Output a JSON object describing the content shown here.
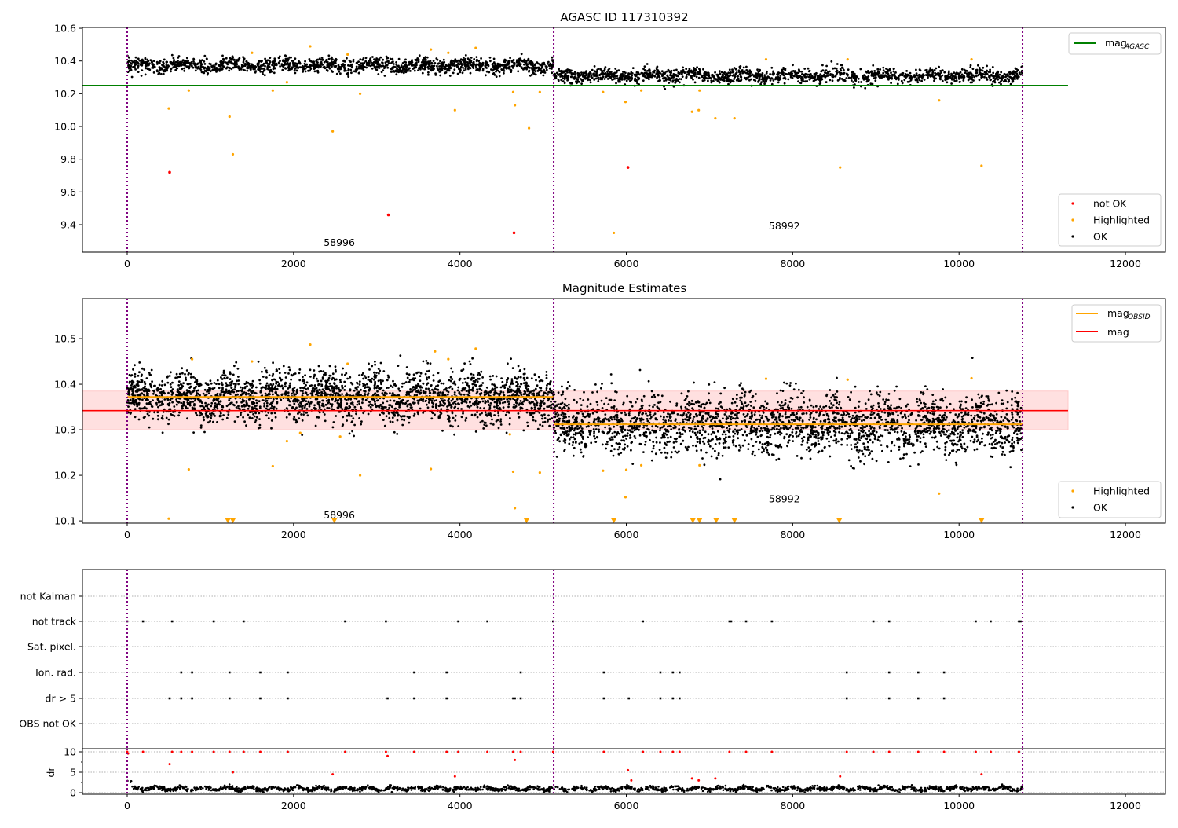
{
  "chart_data": [
    {
      "type": "scatter",
      "title": "AGASC ID 117310392",
      "xlim": [
        -538,
        12481
      ],
      "ylim": [
        9.232,
        10.605
      ],
      "xticks": [
        0,
        2000,
        4000,
        6000,
        8000,
        10000,
        12000
      ],
      "yticks": [
        9.4,
        9.6,
        9.8,
        10.0,
        10.2,
        10.4,
        10.6
      ],
      "obs_boundaries": [
        0,
        5127,
        10763
      ],
      "segments": [
        {
          "x_start": 0,
          "x_end": 5127,
          "mean": 10.372,
          "sigma": 0.022
        },
        {
          "x_start": 5127,
          "x_end": 10763,
          "mean": 10.31,
          "sigma": 0.022
        }
      ],
      "lines": [
        {
          "name": "mag_AGASC",
          "label": "mag",
          "subscript": "AGASC",
          "value": 10.25,
          "x_range": [
            -538,
            11310
          ],
          "color": "#008000"
        }
      ],
      "highlighted": [
        [
          500,
          10.11
        ],
        [
          740,
          10.22
        ],
        [
          1230,
          10.06
        ],
        [
          1270,
          9.83
        ],
        [
          2470,
          9.97
        ],
        [
          2800,
          10.2
        ],
        [
          3940,
          10.1
        ],
        [
          4640,
          10.21
        ],
        [
          4660,
          10.13
        ],
        [
          4830,
          9.99
        ],
        [
          4960,
          10.21
        ],
        [
          5850,
          9.35
        ],
        [
          5990,
          10.15
        ],
        [
          6790,
          10.09
        ],
        [
          6870,
          10.1
        ],
        [
          7070,
          10.05
        ],
        [
          7300,
          10.05
        ],
        [
          8570,
          9.75
        ],
        [
          9760,
          10.16
        ],
        [
          10270,
          9.76
        ],
        [
          1750,
          10.22
        ],
        [
          1920,
          10.27
        ],
        [
          2200,
          10.49
        ],
        [
          3650,
          10.47
        ],
        [
          4190,
          10.48
        ],
        [
          3860,
          10.45
        ],
        [
          7680,
          10.41
        ],
        [
          8660,
          10.41
        ],
        [
          10150,
          10.41
        ],
        [
          1500,
          10.45
        ],
        [
          2650,
          10.44
        ],
        [
          5720,
          10.21
        ],
        [
          6180,
          10.22
        ],
        [
          6880,
          10.22
        ]
      ],
      "not_ok": [
        [
          510,
          9.72
        ],
        [
          3140,
          9.46
        ],
        [
          4650,
          9.35
        ],
        [
          6020,
          9.75
        ]
      ],
      "annotations": [
        {
          "text": "58996",
          "x": 2550,
          "y": 9.29
        },
        {
          "text": "58992",
          "x": 7900,
          "y": 9.39
        }
      ],
      "legends": [
        {
          "position": "upper-right",
          "entries": [
            "mag_AGASC"
          ]
        },
        {
          "position": "lower-right",
          "entries": [
            "not OK",
            "Highlighted",
            "OK"
          ]
        }
      ],
      "legend_labels": {
        "mag": "mag",
        "agasc": "AGASC",
        "not_ok": "not OK",
        "highlighted": "Highlighted",
        "ok": "OK"
      }
    },
    {
      "type": "scatter",
      "title": "Magnitude Estimates",
      "xlim": [
        -538,
        12481
      ],
      "ylim": [
        10.095,
        10.588
      ],
      "xticks": [
        0,
        2000,
        4000,
        6000,
        8000,
        10000,
        12000
      ],
      "yticks": [
        10.1,
        10.2,
        10.3,
        10.4,
        10.5
      ],
      "segments": [
        {
          "x_start": 0,
          "x_end": 5127,
          "mean": 10.372,
          "sigma": 0.027
        },
        {
          "x_start": 5127,
          "x_end": 10763,
          "mean": 10.312,
          "sigma": 0.032
        }
      ],
      "mag": {
        "value": 10.342,
        "band": [
          10.3,
          10.385
        ],
        "x_range": [
          -538,
          11310
        ],
        "color": "#ff0000",
        "band_color": "#ffe0e0"
      },
      "mag_obsid": [
        {
          "x_range": [
            0,
            5127
          ],
          "value": 10.372
        },
        {
          "x_range": [
            5127,
            10763
          ],
          "value": 10.312
        }
      ],
      "highlighted": [
        [
          500,
          10.105
        ],
        [
          740,
          10.213
        ],
        [
          1750,
          10.22
        ],
        [
          1920,
          10.275
        ],
        [
          2080,
          10.293
        ],
        [
          2200,
          10.487
        ],
        [
          2560,
          10.285
        ],
        [
          2800,
          10.2
        ],
        [
          3650,
          10.214
        ],
        [
          3700,
          10.472
        ],
        [
          3860,
          10.455
        ],
        [
          4190,
          10.478
        ],
        [
          4600,
          10.29
        ],
        [
          4640,
          10.208
        ],
        [
          4660,
          10.128
        ],
        [
          4960,
          10.206
        ],
        [
          5720,
          10.21
        ],
        [
          5990,
          10.152
        ],
        [
          6000,
          10.212
        ],
        [
          6180,
          10.222
        ],
        [
          6880,
          10.222
        ],
        [
          7680,
          10.412
        ],
        [
          8660,
          10.41
        ],
        [
          9760,
          10.16
        ],
        [
          10150,
          10.413
        ],
        [
          1500,
          10.45
        ],
        [
          2650,
          10.445
        ],
        [
          780,
          10.455
        ]
      ],
      "clipped_below": [
        1210,
        1270,
        2490,
        4800,
        5850,
        6800,
        6880,
        7080,
        7300,
        8560,
        10270
      ],
      "annotations": [
        {
          "text": "58996",
          "x": 2550,
          "y": 10.112
        },
        {
          "text": "58992",
          "x": 7900,
          "y": 10.148
        }
      ],
      "legend_labels": {
        "mag": "mag",
        "obsid": "OBSID",
        "mag_plain": "mag",
        "highlighted": "Highlighted",
        "ok": "OK"
      }
    },
    {
      "type": "scatter",
      "title": "",
      "categories": [
        "not Kalman",
        "not track",
        "Sat. pixel.",
        "Ion. rad.",
        "dr > 5",
        "OBS not OK"
      ],
      "flags": {
        "not Kalman": [],
        "not track": [
          0,
          190,
          540,
          1040,
          1400,
          2620,
          3110,
          3980,
          4330,
          5120,
          6200,
          7240,
          7260,
          7440,
          7750,
          8970,
          9160,
          10200,
          10380,
          10720,
          10740
        ],
        "Sat. pixel.": [],
        "Ion. rad.": [
          650,
          780,
          1230,
          1600,
          1930,
          3450,
          3840,
          4730,
          5730,
          6410,
          6560,
          6640,
          8650,
          9160,
          9510,
          9820
        ],
        "dr > 5": [
          510,
          650,
          780,
          1230,
          1600,
          1930,
          3130,
          3450,
          3840,
          4640,
          4660,
          4730,
          5730,
          6030,
          6410,
          6560,
          6640,
          8650,
          9160,
          9510,
          9820
        ],
        "OBS not OK": []
      }
    },
    {
      "type": "scatter",
      "ylabel": "dr",
      "ylim": [
        -0.38,
        10.77
      ],
      "yticks": [
        0,
        5,
        10
      ],
      "xticks": [
        0,
        2000,
        4000,
        6000,
        8000,
        10000,
        12000
      ],
      "baseline": {
        "mean": 1.0,
        "amplitude": 0.6
      },
      "red_points": [
        [
          0,
          10
        ],
        [
          10,
          9.6
        ],
        [
          190,
          10
        ],
        [
          540,
          10
        ],
        [
          510,
          7
        ],
        [
          650,
          10
        ],
        [
          780,
          10
        ],
        [
          1040,
          10
        ],
        [
          1230,
          10
        ],
        [
          1270,
          5
        ],
        [
          1400,
          10
        ],
        [
          1600,
          10
        ],
        [
          1930,
          10
        ],
        [
          2470,
          4.5
        ],
        [
          2620,
          10
        ],
        [
          3110,
          10
        ],
        [
          3130,
          9
        ],
        [
          3450,
          10
        ],
        [
          3840,
          10
        ],
        [
          3940,
          4
        ],
        [
          3980,
          10
        ],
        [
          4330,
          10
        ],
        [
          4640,
          10
        ],
        [
          4660,
          8
        ],
        [
          4730,
          10
        ],
        [
          5120,
          10
        ],
        [
          5730,
          10
        ],
        [
          6020,
          5.5
        ],
        [
          6060,
          3
        ],
        [
          6200,
          10
        ],
        [
          6410,
          10
        ],
        [
          6560,
          10
        ],
        [
          6640,
          10
        ],
        [
          6790,
          3.5
        ],
        [
          6870,
          3
        ],
        [
          7070,
          3.5
        ],
        [
          7240,
          10
        ],
        [
          7440,
          10
        ],
        [
          7750,
          10
        ],
        [
          8570,
          4
        ],
        [
          8650,
          10
        ],
        [
          8970,
          10
        ],
        [
          9160,
          10
        ],
        [
          9510,
          10
        ],
        [
          9820,
          10
        ],
        [
          10200,
          10
        ],
        [
          10270,
          4.5
        ],
        [
          10380,
          10
        ],
        [
          10720,
          10
        ]
      ]
    }
  ]
}
